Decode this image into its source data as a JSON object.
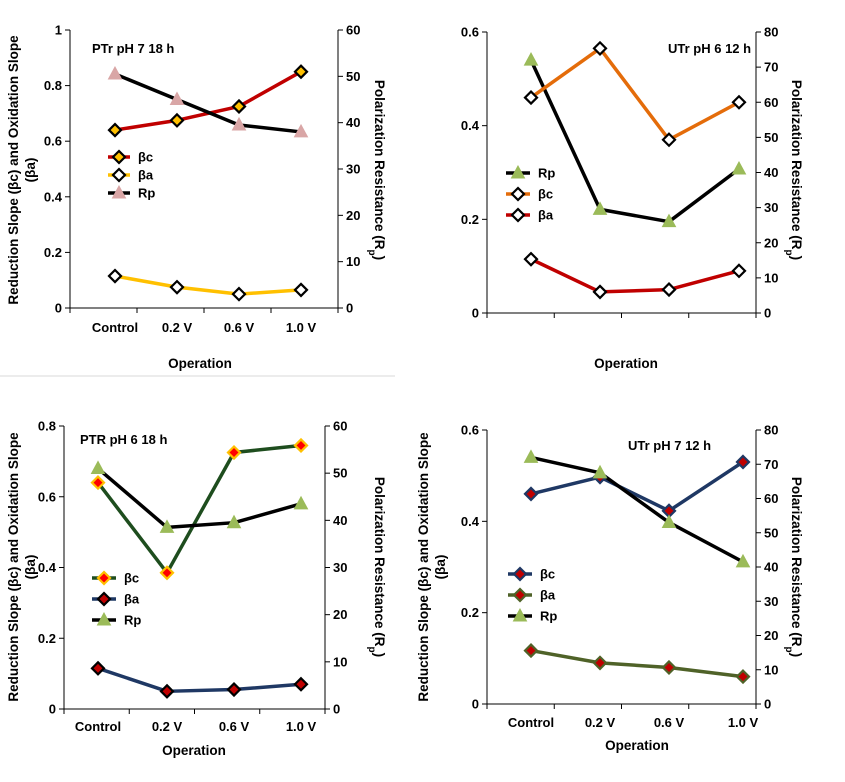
{
  "chart_data": [
    {
      "type": "line",
      "title": "PTr pH 7 18 h",
      "categories": [
        "Control",
        "0.2 V",
        "0.6 V",
        "1.0 V"
      ],
      "xlabel": "Operation",
      "ylabel": "Reduction Slope (βc) and Oxidation Slope (βa)",
      "y2label": "Polarization Resistance (Rp)",
      "ylim": [
        0,
        1
      ],
      "yticks": [
        "0",
        "0.2",
        "0.4",
        "0.6",
        "0.8",
        "1"
      ],
      "y2lim": [
        0,
        60
      ],
      "y2ticks": [
        "0",
        "10",
        "20",
        "30",
        "40",
        "50",
        "60"
      ],
      "series": [
        {
          "name": "βc",
          "axis": "left",
          "values": [
            0.64,
            0.675,
            0.725,
            0.85
          ],
          "line": "#c00000",
          "marker": "diamond",
          "markerFill": "#ffc000",
          "markerStroke": "#000000"
        },
        {
          "name": "βa",
          "axis": "left",
          "values": [
            0.115,
            0.075,
            0.05,
            0.065
          ],
          "line": "#ffc000",
          "marker": "diamond",
          "markerFill": "#ffffff",
          "markerStroke": "#000000"
        },
        {
          "name": "Rp",
          "axis": "right",
          "values": [
            50.5,
            45,
            39.5,
            38
          ],
          "line": "#000000",
          "marker": "triangle",
          "markerFill": "#d9a6a6",
          "markerStroke": "#d9a6a6"
        }
      ],
      "legend_order": [
        0,
        1,
        2
      ]
    },
    {
      "type": "line",
      "title": "UTr pH 6 12 h",
      "categories": [
        "",
        "",
        "",
        ""
      ],
      "xlabel": "Operation",
      "ylabel": "",
      "y2label": "Polarization Resistance (Rp)",
      "ylim": [
        0,
        0.6
      ],
      "yticks": [
        "0",
        "0.2",
        "0.4",
        "0.6"
      ],
      "y2lim": [
        0,
        80
      ],
      "y2ticks": [
        "0",
        "10",
        "20",
        "30",
        "40",
        "50",
        "60",
        "70",
        "80"
      ],
      "series": [
        {
          "name": "Rp",
          "axis": "right",
          "values": [
            72,
            29.5,
            26,
            41
          ],
          "line": "#000000",
          "marker": "triangle",
          "markerFill": "#9bbb59",
          "markerStroke": "#9bbb59"
        },
        {
          "name": "βc",
          "axis": "left",
          "values": [
            0.46,
            0.565,
            0.37,
            0.45
          ],
          "line": "#e46c0a",
          "marker": "diamond",
          "markerFill": "#ffffff",
          "markerStroke": "#000000"
        },
        {
          "name": "βa",
          "axis": "left",
          "values": [
            0.115,
            0.045,
            0.05,
            0.09
          ],
          "line": "#c00000",
          "marker": "diamond",
          "markerFill": "#ffffff",
          "markerStroke": "#000000"
        }
      ],
      "legend_order": [
        0,
        1,
        2
      ]
    },
    {
      "type": "line",
      "title": "PTR pH 6 18 h",
      "categories": [
        "Control",
        "0.2 V",
        "0.6 V",
        "1.0 V"
      ],
      "xlabel": "Operation",
      "ylabel": "Reduction Slope (βc) and Oxidation Slope (βa)",
      "y2label": "Polarization Resistance (Rp)",
      "ylim": [
        0,
        0.8
      ],
      "yticks": [
        "0",
        "0.2",
        "0.4",
        "0.6",
        "0.8"
      ],
      "y2lim": [
        0,
        60
      ],
      "y2ticks": [
        "0",
        "10",
        "20",
        "30",
        "40",
        "50",
        "60"
      ],
      "series": [
        {
          "name": "βc",
          "axis": "left",
          "values": [
            0.64,
            0.385,
            0.725,
            0.745
          ],
          "line": "#1e4d1e",
          "marker": "diamond",
          "markerFill": "#ff0000",
          "markerStroke": "#ffc000"
        },
        {
          "name": "βa",
          "axis": "left",
          "values": [
            0.115,
            0.05,
            0.055,
            0.07
          ],
          "line": "#1f3864",
          "marker": "diamond",
          "markerFill": "#c00000",
          "markerStroke": "#000000"
        },
        {
          "name": "Rp",
          "axis": "right",
          "values": [
            51,
            38.5,
            39.5,
            43.5
          ],
          "line": "#000000",
          "marker": "triangle",
          "markerFill": "#9bbb59",
          "markerStroke": "#9bbb59"
        }
      ],
      "legend_order": [
        0,
        1,
        2
      ]
    },
    {
      "type": "line",
      "title": "UTr pH 7 12 h",
      "categories": [
        "Control",
        "0.2 V",
        "0.6 V",
        "1.0 V"
      ],
      "xlabel": "Operation",
      "ylabel": "Reduction Slope (βc) and Oxidation Slope (βa)",
      "y2label": "Polarization Resistance (Rp)",
      "ylim": [
        0,
        0.6
      ],
      "yticks": [
        "0",
        "0.2",
        "0.4",
        "0.6"
      ],
      "y2lim": [
        0,
        80
      ],
      "y2ticks": [
        "0",
        "10",
        "20",
        "30",
        "40",
        "50",
        "60",
        "70",
        "80"
      ],
      "series": [
        {
          "name": "βc",
          "axis": "left",
          "values": [
            0.46,
            0.497,
            0.423,
            0.53
          ],
          "line": "#1f3864",
          "marker": "diamond",
          "markerFill": "#c00000",
          "markerStroke": "#1f3864"
        },
        {
          "name": "βa",
          "axis": "left",
          "values": [
            0.117,
            0.09,
            0.08,
            0.06
          ],
          "line": "#4f6228",
          "marker": "diamond",
          "markerFill": "#c00000",
          "markerStroke": "#4f6228"
        },
        {
          "name": "Rp",
          "axis": "right",
          "values": [
            72,
            67.5,
            53,
            41.5
          ],
          "line": "#000000",
          "marker": "triangle",
          "markerFill": "#9bbb59",
          "markerStroke": "#9bbb59"
        }
      ],
      "legend_order": [
        0,
        1,
        2
      ]
    }
  ]
}
